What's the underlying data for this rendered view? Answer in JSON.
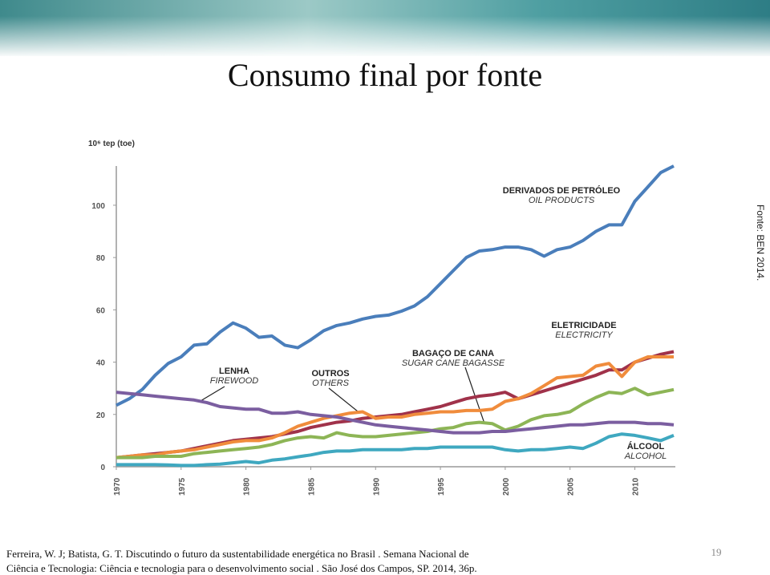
{
  "title": "Consumo final por fonte",
  "source_note": "Fonte: BEN 2014.",
  "citation": [
    "Ferreira, W. J;  Batista, G. T. Discutindo o futuro da sustentabilidade energética no Brasil . Semana Nacional de",
    "Ciência e Tecnologia: Ciência e tecnologia para o desenvolvimento social . São José dos Campos, SP.  2014,  36p."
  ],
  "page_number": "19",
  "chart_data": {
    "type": "line",
    "y_label": "10⁶ tep (toe)",
    "x": [
      1970,
      1971,
      1972,
      1973,
      1974,
      1975,
      1976,
      1977,
      1978,
      1979,
      1980,
      1981,
      1982,
      1983,
      1984,
      1985,
      1986,
      1987,
      1988,
      1989,
      1990,
      1991,
      1992,
      1993,
      1994,
      1995,
      1996,
      1997,
      1998,
      1999,
      2000,
      2001,
      2002,
      2003,
      2004,
      2005,
      2006,
      2007,
      2008,
      2009,
      2010,
      2011,
      2012,
      2013
    ],
    "xlim": [
      1970,
      2013
    ],
    "xticks": [
      1970,
      1975,
      1980,
      1985,
      1990,
      1995,
      2000,
      2005,
      2010
    ],
    "ylim": [
      0,
      115
    ],
    "yticks": [
      0,
      20,
      40,
      60,
      80,
      100
    ],
    "grid": false,
    "series": [
      {
        "name": "DERIVADOS DE PETRÓLEO",
        "name_en": "OIL PRODUCTS",
        "color": "#4a7ebb",
        "values": [
          23.5,
          26,
          29.5,
          35,
          39.5,
          42,
          46.5,
          47,
          51.5,
          55,
          53,
          49.5,
          50,
          46.5,
          45.5,
          48.5,
          52,
          54,
          55,
          56.5,
          57.5,
          58,
          59.5,
          61.5,
          65,
          70,
          75,
          80,
          82.5,
          83,
          84,
          84,
          83,
          80.5,
          83,
          84,
          86.5,
          90,
          92.5,
          92.5,
          101.5,
          107,
          112.5,
          115
        ]
      },
      {
        "name": "ELETRICIDADE",
        "name_en": "ELECTRICITY",
        "color": "#a0324a",
        "values": [
          3.5,
          4,
          4.5,
          5,
          5.5,
          6,
          7,
          8,
          9,
          10,
          10.5,
          11,
          11.5,
          12.5,
          13.5,
          15,
          16,
          17,
          17.5,
          18.5,
          19,
          19.5,
          20,
          21,
          22,
          23,
          24.5,
          26,
          27,
          27.5,
          28.5,
          26,
          27.5,
          29,
          30.5,
          32,
          33.5,
          35,
          37,
          37,
          40,
          41.5,
          43,
          44
        ]
      },
      {
        "name": "BAGAÇO DE CANA",
        "name_en": "SUGAR CANE BAGASSE",
        "color": "#f08c3c",
        "values": [
          3.5,
          4,
          4.5,
          4.5,
          5.5,
          6,
          6.5,
          7.5,
          8.5,
          9.5,
          10,
          10,
          11,
          13,
          15.5,
          17,
          18.5,
          19.5,
          20.5,
          21,
          18.5,
          19,
          19,
          20,
          20.5,
          21,
          21,
          21.5,
          21.5,
          22,
          25,
          26,
          28,
          31,
          34,
          34.5,
          35,
          38.5,
          39.5,
          34.5,
          40,
          42,
          42,
          42
        ]
      },
      {
        "name": "OUTROS",
        "name_en": "OTHERS",
        "color": "#8db556",
        "values": [
          3.5,
          3.5,
          3.5,
          4,
          4,
          4,
          5,
          5.5,
          6,
          6.5,
          7,
          7.5,
          8.5,
          10,
          11,
          11.5,
          11,
          13,
          12,
          11.5,
          11.5,
          12,
          12.5,
          13,
          13.5,
          14.5,
          15,
          16.5,
          17,
          16.5,
          14,
          15.5,
          18,
          19.5,
          20,
          21,
          24,
          26.5,
          28.5,
          28,
          30,
          27.5,
          28.5,
          29.5
        ]
      },
      {
        "name": "LENHA",
        "name_en": "FIREWOOD",
        "color": "#7b5ea0",
        "values": [
          28.5,
          28,
          27.5,
          27,
          26.5,
          26,
          25.5,
          24.5,
          23,
          22.5,
          22,
          22,
          20.5,
          20.5,
          21,
          20,
          19.5,
          19,
          18,
          17,
          16,
          15.5,
          15,
          14.5,
          14,
          13.5,
          13,
          13,
          13,
          13.5,
          13.5,
          14,
          14.5,
          15,
          15.5,
          16,
          16,
          16.5,
          17,
          17,
          17,
          16.5,
          16.5,
          16
        ]
      },
      {
        "name": "ÁLCOOL",
        "name_en": "ALCOHOL",
        "color": "#3fa8c0",
        "values": [
          0.8,
          0.8,
          0.8,
          0.8,
          0.7,
          0.5,
          0.5,
          0.8,
          1,
          1.5,
          2,
          1.5,
          2.5,
          3,
          3.8,
          4.5,
          5.5,
          6,
          6,
          6.5,
          6.5,
          6.5,
          6.5,
          7,
          7,
          7.5,
          7.5,
          7.5,
          7.5,
          7.5,
          6.5,
          6,
          6.5,
          6.5,
          7,
          7.5,
          7,
          9,
          11.5,
          12.5,
          12,
          11,
          10,
          12
        ]
      }
    ]
  }
}
